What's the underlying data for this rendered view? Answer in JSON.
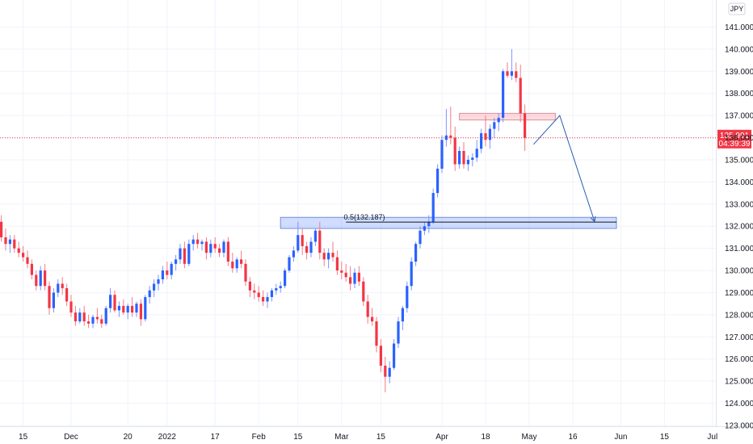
{
  "currency_badge": "JPY",
  "current_price": {
    "value_label": "135.991",
    "countdown": "04:39:39",
    "value": 135.991,
    "color": "#f23645"
  },
  "colors": {
    "up": "#2962ff",
    "down": "#f23645",
    "wick_up": "#7a95ff",
    "wick_down": "#f57a85",
    "zone_red_fill": "rgba(242,54,69,0.18)",
    "zone_red_border": "#d98fa0",
    "zone_blue_fill": "rgba(41,98,255,0.22)",
    "zone_blue_border": "#6f8fd8",
    "projection": "#2a5db0"
  },
  "chart_data": {
    "type": "candlestick",
    "ylim": [
      123,
      141.6
    ],
    "y_ticks": [
      "123.000",
      "124.000",
      "125.000",
      "126.000",
      "127.000",
      "128.000",
      "129.000",
      "130.000",
      "131.000",
      "132.000",
      "133.000",
      "134.000",
      "135.000",
      "136.000",
      "137.000",
      "138.000",
      "139.000",
      "140.000",
      "141.000"
    ],
    "x_ticks": [
      {
        "label": "15",
        "i": 5
      },
      {
        "label": "Dec",
        "i": 16
      },
      {
        "label": "20",
        "i": 29
      },
      {
        "label": "2022",
        "i": 38
      },
      {
        "label": "17",
        "i": 49
      },
      {
        "label": "Feb",
        "i": 59
      },
      {
        "label": "15",
        "i": 68
      },
      {
        "label": "Mar",
        "i": 78
      },
      {
        "label": "15",
        "i": 87
      },
      {
        "label": "Apr",
        "i": 101
      },
      {
        "label": "18",
        "i": 111
      },
      {
        "label": "May",
        "i": 121
      },
      {
        "label": "16",
        "i": 131
      },
      {
        "label": "Jun",
        "i": 142
      },
      {
        "label": "15",
        "i": 152
      },
      {
        "label": "Jul",
        "i": 163
      }
    ],
    "candles": [
      [
        132.2,
        132.5,
        131.3,
        131.5
      ],
      [
        131.5,
        131.9,
        130.9,
        131.2
      ],
      [
        131.2,
        131.6,
        130.8,
        131.4
      ],
      [
        131.4,
        131.6,
        130.8,
        131.0
      ],
      [
        131.0,
        131.3,
        130.6,
        130.8
      ],
      [
        130.8,
        131.1,
        130.4,
        130.6
      ],
      [
        130.6,
        130.9,
        130.1,
        130.3
      ],
      [
        130.3,
        130.5,
        129.6,
        129.8
      ],
      [
        129.8,
        130.0,
        129.1,
        129.3
      ],
      [
        129.3,
        130.2,
        129.1,
        130.0
      ],
      [
        130.0,
        130.3,
        129.1,
        129.3
      ],
      [
        129.3,
        129.5,
        128.0,
        128.3
      ],
      [
        128.3,
        129.2,
        128.1,
        129.0
      ],
      [
        129.0,
        129.6,
        128.8,
        129.4
      ],
      [
        129.4,
        129.7,
        128.9,
        129.2
      ],
      [
        129.2,
        129.4,
        128.4,
        128.6
      ],
      [
        128.6,
        128.9,
        127.9,
        128.1
      ],
      [
        128.1,
        128.4,
        127.5,
        127.7
      ],
      [
        127.7,
        128.3,
        127.6,
        128.1
      ],
      [
        128.1,
        128.4,
        127.5,
        127.7
      ],
      [
        127.7,
        128.0,
        127.4,
        127.6
      ],
      [
        127.6,
        128.0,
        127.4,
        127.9
      ],
      [
        127.9,
        128.3,
        127.6,
        127.8
      ],
      [
        127.8,
        128.0,
        127.4,
        127.6
      ],
      [
        127.6,
        128.4,
        127.5,
        128.3
      ],
      [
        128.3,
        129.2,
        128.1,
        128.9
      ],
      [
        128.9,
        129.1,
        128.1,
        128.2
      ],
      [
        128.2,
        128.6,
        127.9,
        128.4
      ],
      [
        128.4,
        128.7,
        128.0,
        128.1
      ],
      [
        128.1,
        128.5,
        127.8,
        128.4
      ],
      [
        128.4,
        128.8,
        127.9,
        128.1
      ],
      [
        128.1,
        128.6,
        127.9,
        128.5
      ],
      [
        128.5,
        128.7,
        127.5,
        127.8
      ],
      [
        127.8,
        128.9,
        127.7,
        128.8
      ],
      [
        128.8,
        129.3,
        128.5,
        129.1
      ],
      [
        129.1,
        129.6,
        128.8,
        129.4
      ],
      [
        129.4,
        129.8,
        129.1,
        129.6
      ],
      [
        129.6,
        130.2,
        129.4,
        130.0
      ],
      [
        130.0,
        130.4,
        129.6,
        129.8
      ],
      [
        129.8,
        130.4,
        129.6,
        130.3
      ],
      [
        130.3,
        130.7,
        130.0,
        130.5
      ],
      [
        130.5,
        131.2,
        130.3,
        131.0
      ],
      [
        131.0,
        131.3,
        130.1,
        130.3
      ],
      [
        130.3,
        131.4,
        130.2,
        131.2
      ],
      [
        131.2,
        131.6,
        130.9,
        131.4
      ],
      [
        131.4,
        131.7,
        131.0,
        131.2
      ],
      [
        131.2,
        131.4,
        130.9,
        131.3
      ],
      [
        131.3,
        131.5,
        130.5,
        130.8
      ],
      [
        130.8,
        131.4,
        130.6,
        131.2
      ],
      [
        131.2,
        131.5,
        130.8,
        131.0
      ],
      [
        131.0,
        131.2,
        130.6,
        130.8
      ],
      [
        130.8,
        131.4,
        130.6,
        131.3
      ],
      [
        131.3,
        131.5,
        130.2,
        130.4
      ],
      [
        130.4,
        130.8,
        129.9,
        130.1
      ],
      [
        130.1,
        130.6,
        129.9,
        130.5
      ],
      [
        130.5,
        130.9,
        130.1,
        130.3
      ],
      [
        130.3,
        130.5,
        129.3,
        129.5
      ],
      [
        129.5,
        129.7,
        128.8,
        129.1
      ],
      [
        129.1,
        129.4,
        128.7,
        129.0
      ],
      [
        129.0,
        129.3,
        128.6,
        128.8
      ],
      [
        128.8,
        129.1,
        128.4,
        128.6
      ],
      [
        128.6,
        129.0,
        128.3,
        128.8
      ],
      [
        128.8,
        129.2,
        128.6,
        129.1
      ],
      [
        129.1,
        129.4,
        128.9,
        129.2
      ],
      [
        129.2,
        129.5,
        129.0,
        129.3
      ],
      [
        129.3,
        130.1,
        129.2,
        130.0
      ],
      [
        130.0,
        130.7,
        129.9,
        130.6
      ],
      [
        130.6,
        131.1,
        130.4,
        130.9
      ],
      [
        130.9,
        132.2,
        130.8,
        131.6
      ],
      [
        131.6,
        131.9,
        130.7,
        131.1
      ],
      [
        131.1,
        131.3,
        130.5,
        130.8
      ],
      [
        130.8,
        131.5,
        130.6,
        131.3
      ],
      [
        131.3,
        131.9,
        131.1,
        131.8
      ],
      [
        131.8,
        132.2,
        130.5,
        130.8
      ],
      [
        130.8,
        131.0,
        130.2,
        130.5
      ],
      [
        130.5,
        131.0,
        130.1,
        130.8
      ],
      [
        130.8,
        131.3,
        130.4,
        130.6
      ],
      [
        130.6,
        130.9,
        129.8,
        130.0
      ],
      [
        130.0,
        130.4,
        129.6,
        129.9
      ],
      [
        129.9,
        130.3,
        129.5,
        129.7
      ],
      [
        129.7,
        130.2,
        129.1,
        129.4
      ],
      [
        129.4,
        130.1,
        129.2,
        129.9
      ],
      [
        129.9,
        130.2,
        129.3,
        129.5
      ],
      [
        129.5,
        129.7,
        128.4,
        128.6
      ],
      [
        128.6,
        128.9,
        127.6,
        127.9
      ],
      [
        127.9,
        128.3,
        127.5,
        127.7
      ],
      [
        127.7,
        127.9,
        126.3,
        126.6
      ],
      [
        126.6,
        126.9,
        125.4,
        125.7
      ],
      [
        125.7,
        126.1,
        124.5,
        125.2
      ],
      [
        125.2,
        125.9,
        124.9,
        125.6
      ],
      [
        125.6,
        126.9,
        125.5,
        126.7
      ],
      [
        126.7,
        127.9,
        126.5,
        127.7
      ],
      [
        127.7,
        128.4,
        127.3,
        128.3
      ],
      [
        128.3,
        129.5,
        128.1,
        129.3
      ],
      [
        129.3,
        130.6,
        129.1,
        130.4
      ],
      [
        130.4,
        131.3,
        130.2,
        131.2
      ],
      [
        131.2,
        132.0,
        131.0,
        131.8
      ],
      [
        131.8,
        132.2,
        131.6,
        132.0
      ],
      [
        132.0,
        132.5,
        131.7,
        132.2
      ],
      [
        132.2,
        133.7,
        132.1,
        133.5
      ],
      [
        133.5,
        134.8,
        133.3,
        134.6
      ],
      [
        134.6,
        136.1,
        134.4,
        135.9
      ],
      [
        135.9,
        137.3,
        135.6,
        136.1
      ],
      [
        136.1,
        137.4,
        135.7,
        136.0
      ],
      [
        136.0,
        136.5,
        134.5,
        134.8
      ],
      [
        134.8,
        135.6,
        134.6,
        135.4
      ],
      [
        135.4,
        135.8,
        134.6,
        134.8
      ],
      [
        134.8,
        135.2,
        134.5,
        135.0
      ],
      [
        135.0,
        135.3,
        134.7,
        135.1
      ],
      [
        135.1,
        135.9,
        134.9,
        135.5
      ],
      [
        135.5,
        136.4,
        135.3,
        136.2
      ],
      [
        136.2,
        137.0,
        135.6,
        135.9
      ],
      [
        135.9,
        136.6,
        135.5,
        136.4
      ],
      [
        136.4,
        136.9,
        136.0,
        136.7
      ],
      [
        136.7,
        137.1,
        136.3,
        136.9
      ],
      [
        136.9,
        139.1,
        136.7,
        139.0
      ],
      [
        139.0,
        139.4,
        138.7,
        138.8
      ],
      [
        138.8,
        140.0,
        138.6,
        139.0
      ],
      [
        139.0,
        139.4,
        138.5,
        138.7
      ],
      [
        138.7,
        139.3,
        136.7,
        137.1
      ],
      [
        137.1,
        137.5,
        135.4,
        135.991
      ]
    ]
  },
  "annotations": {
    "fib_label": "0.5(132.187)",
    "fib_value": 132.187,
    "upper_zone": {
      "from": 136.8,
      "to": 137.1,
      "i_start": 105,
      "i_end": 127
    },
    "lower_zone": {
      "from": 131.9,
      "to": 132.4,
      "i_start": 64,
      "i_end": 141
    },
    "projection_points": [
      [
        122,
        135.7
      ],
      [
        128,
        137.0
      ],
      [
        136,
        132.2
      ]
    ]
  }
}
